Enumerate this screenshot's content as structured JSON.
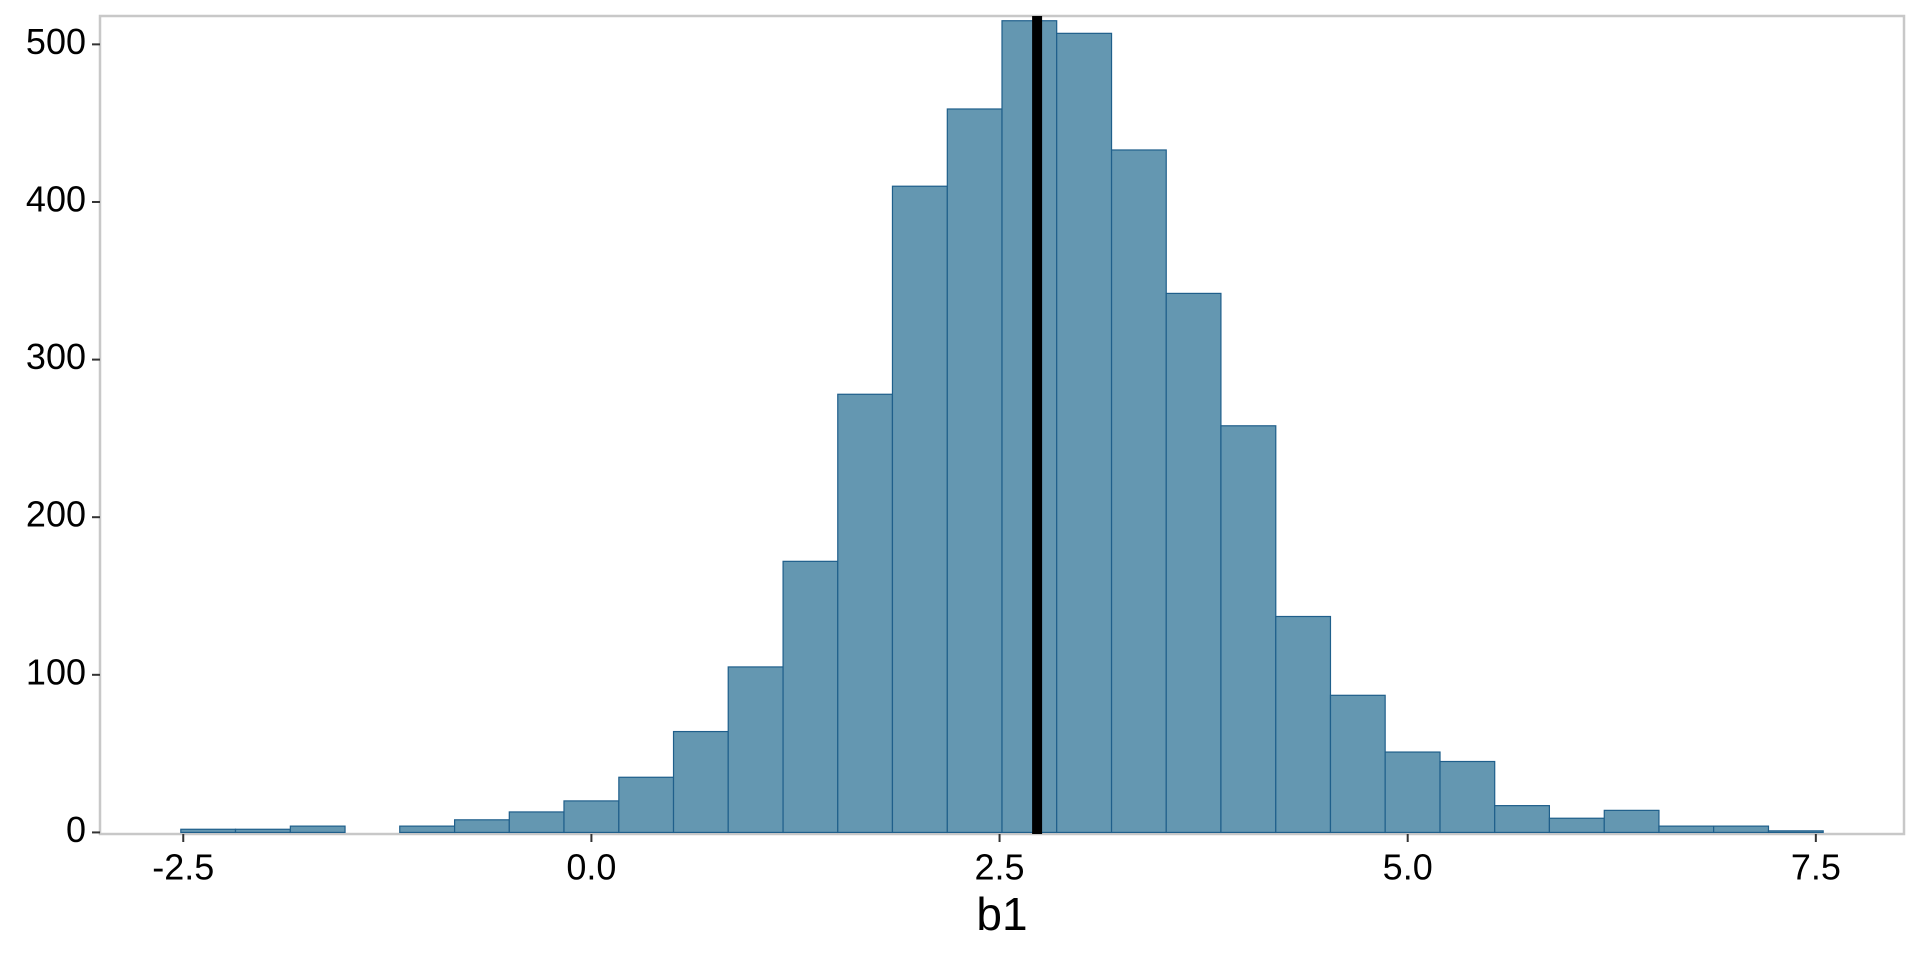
{
  "chart_data": {
    "type": "histogram",
    "x_label": "b1",
    "bins": [
      -2.515,
      -2.18,
      -1.844,
      -1.509,
      -1.174,
      -0.838,
      -0.503,
      -0.168,
      0.168,
      0.503,
      0.838,
      1.174,
      1.509,
      1.844,
      2.18,
      2.515,
      2.85,
      3.186,
      3.521,
      3.856,
      4.192,
      4.527,
      4.862,
      5.198,
      5.533,
      5.868,
      6.204,
      6.539,
      6.874,
      7.21,
      7.545
    ],
    "counts": [
      2,
      2,
      4,
      0,
      4,
      8,
      13,
      20,
      35,
      64,
      105,
      172,
      278,
      410,
      459,
      515,
      507,
      433,
      342,
      258,
      137,
      87,
      51,
      45,
      17,
      9,
      14,
      4,
      4,
      1
    ],
    "color": "#6497b1",
    "edge_color": "#1f5f8b",
    "reference_line": 2.73,
    "reference_color": "#000000",
    "xlim": [
      -3.01,
      8.04
    ],
    "ylim": [
      -1,
      518
    ],
    "xticks": [
      -2.5,
      {
        "value": 0,
        "label": "0.0"
      },
      2.5,
      {
        "value": 5,
        "label": "5.0"
      },
      7.5
    ],
    "yticks": [
      0,
      100,
      200,
      300,
      400,
      500
    ]
  }
}
